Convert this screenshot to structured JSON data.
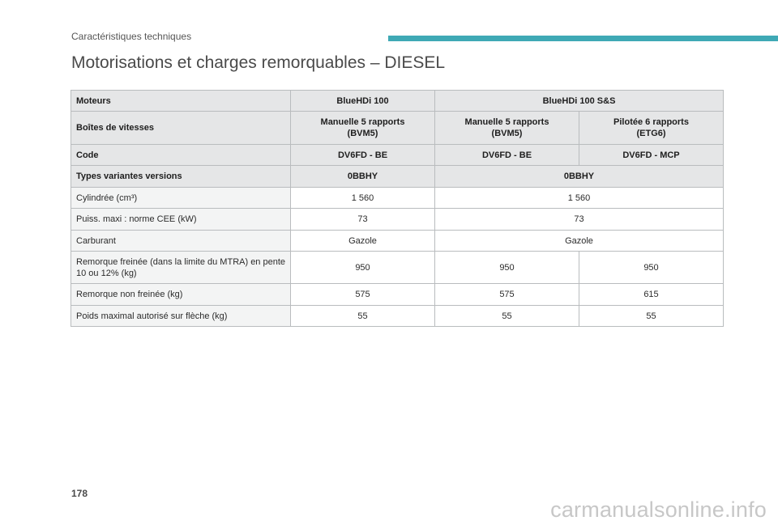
{
  "header": {
    "section_title": "Caractéristiques techniques",
    "accent_color": "#3fa9b5"
  },
  "page_title": "Motorisations et charges remorquables – DIESEL",
  "table": {
    "moteurs_label": "Moteurs",
    "moteur_a": "BlueHDi 100",
    "moteur_b": "BlueHDi 100 S&S",
    "boites_label": "Boîtes de vitesses",
    "boites": [
      {
        "line1": "Manuelle 5 rapports",
        "line2": "(BVM5)"
      },
      {
        "line1": "Manuelle 5 rapports",
        "line2": "(BVM5)"
      },
      {
        "line1": "Pilotée 6 rapports",
        "line2": "(ETG6)"
      }
    ],
    "code_label": "Code",
    "codes": [
      "DV6FD - BE",
      "DV6FD - BE",
      "DV6FD - MCP"
    ],
    "types_label": "Types variantes versions",
    "types": [
      "0BBHY",
      "0BBHY"
    ],
    "cylindree_label": "Cylindrée (cm³)",
    "cylindree": [
      "1 560",
      "1 560"
    ],
    "puissance_label": "Puiss. maxi : norme CEE (kW)",
    "puissance": [
      "73",
      "73"
    ],
    "carburant_label": "Carburant",
    "carburant": [
      "Gazole",
      "Gazole"
    ],
    "remorque_freinee_label": "Remorque freinée (dans la limite du MTRA) en pente 10 ou 12% (kg)",
    "remorque_freinee": [
      "950",
      "950",
      "950"
    ],
    "remorque_non_freinee_label": "Remorque non freinée (kg)",
    "remorque_non_freinee": [
      "575",
      "575",
      "615"
    ],
    "poids_fleche_label": "Poids maximal autorisé sur flèche (kg)",
    "poids_fleche": [
      "55",
      "55",
      "55"
    ]
  },
  "page_number": "178",
  "watermark": "carmanualsonline.info"
}
